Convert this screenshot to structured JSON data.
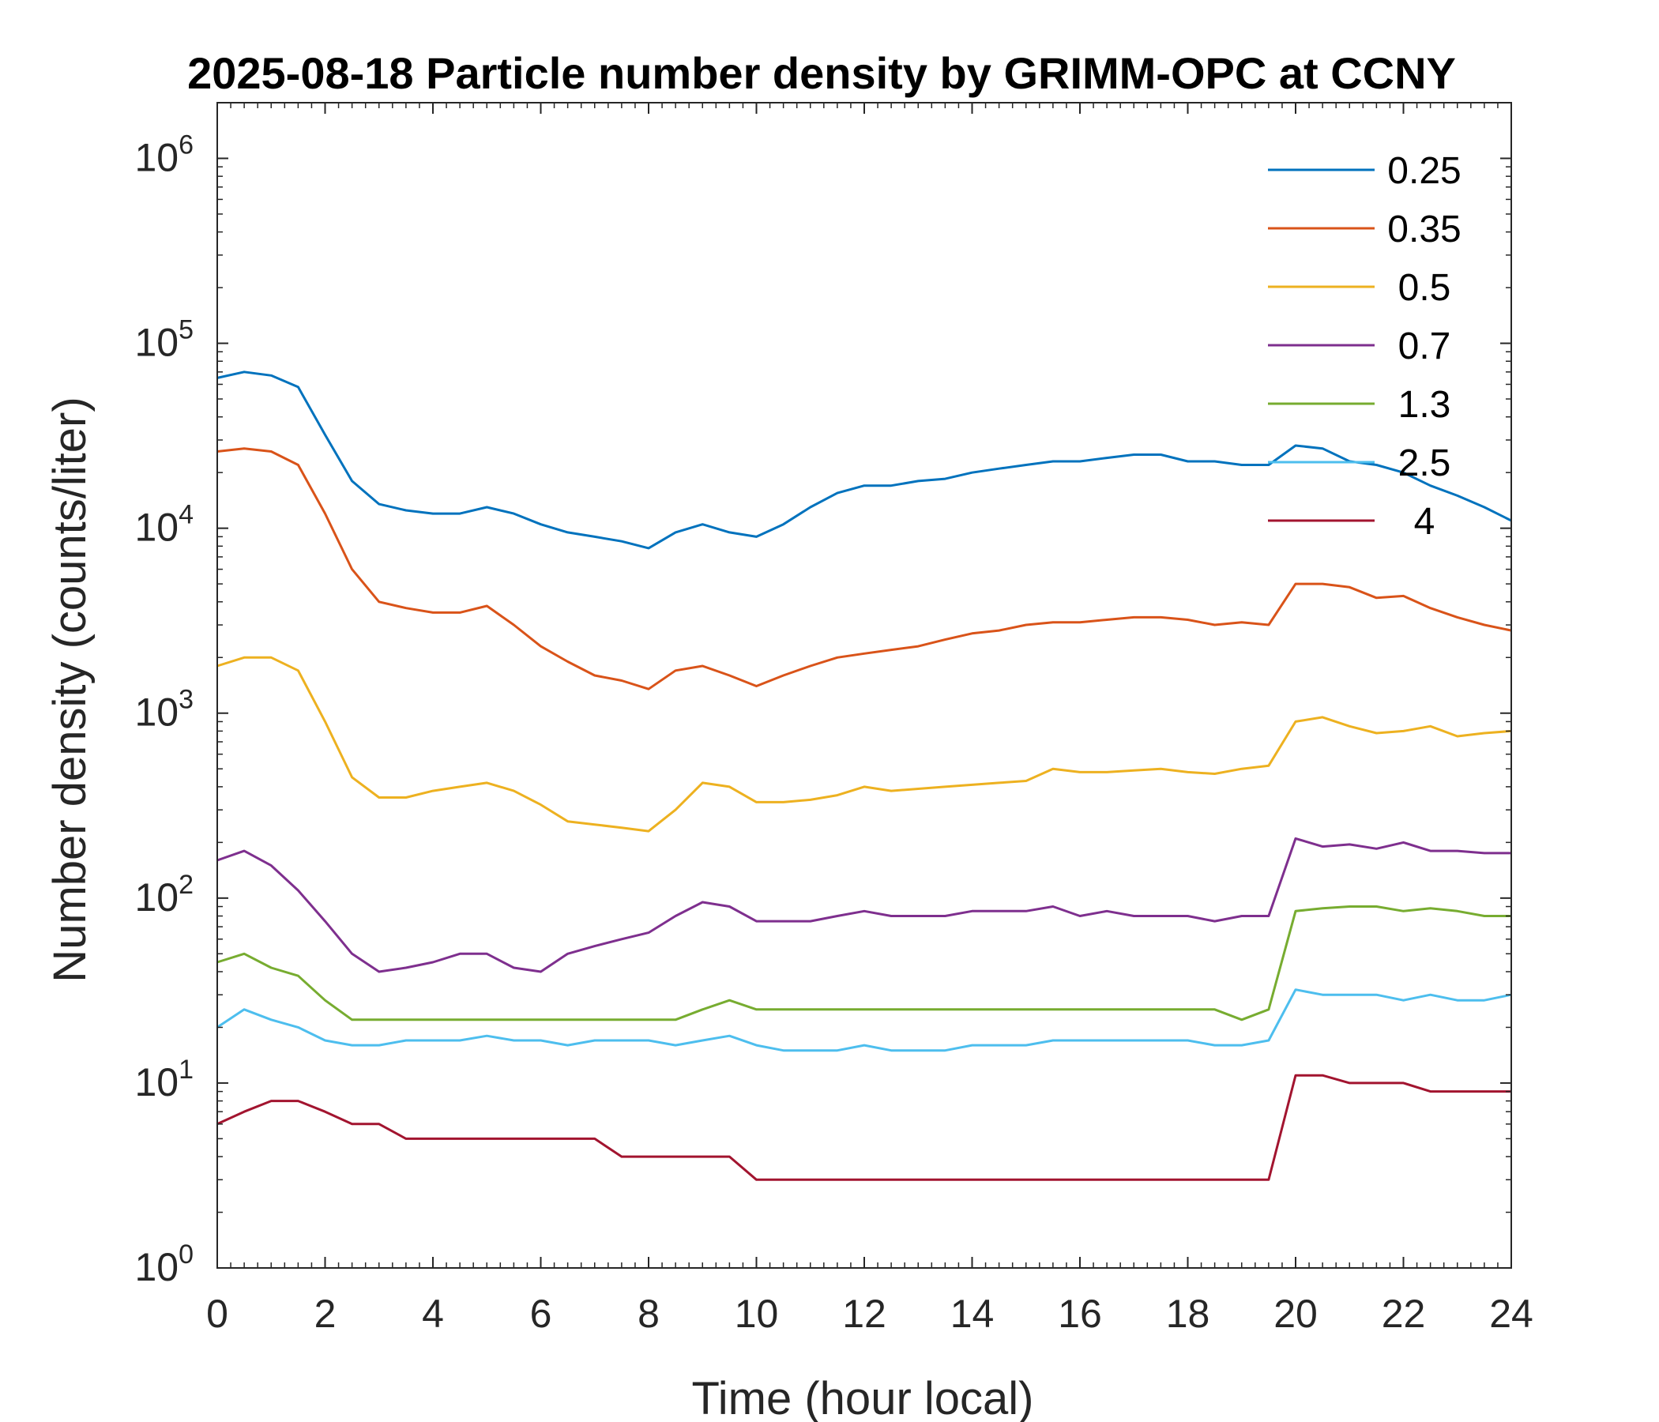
{
  "chart_data": {
    "type": "line",
    "title": "2025-08-18 Particle number density by GRIMM-OPC at CCNY",
    "xlabel": "Time (hour local)",
    "ylabel": "Number density (counts/liter)",
    "xlim": [
      0,
      24
    ],
    "ylim": [
      1,
      2000000
    ],
    "yscale": "log",
    "xticks": [
      0,
      2,
      4,
      6,
      8,
      10,
      12,
      14,
      16,
      18,
      20,
      22,
      24
    ],
    "xtick_labels": [
      "0",
      "2",
      "4",
      "6",
      "8",
      "10",
      "12",
      "14",
      "16",
      "18",
      "20",
      "22",
      "24"
    ],
    "yticks": [
      {
        "base": "10",
        "exp": "0",
        "value": 1
      },
      {
        "base": "10",
        "exp": "1",
        "value": 10
      },
      {
        "base": "10",
        "exp": "2",
        "value": 100
      },
      {
        "base": "10",
        "exp": "3",
        "value": 1000
      },
      {
        "base": "10",
        "exp": "4",
        "value": 10000
      },
      {
        "base": "10",
        "exp": "5",
        "value": 100000
      },
      {
        "base": "10",
        "exp": "6",
        "value": 1000000
      }
    ],
    "grid": false,
    "legend_position": "top-right",
    "x": [
      0,
      0.5,
      1,
      1.5,
      2,
      2.5,
      3,
      3.5,
      4,
      4.5,
      5,
      5.5,
      6,
      6.5,
      7,
      7.5,
      8,
      8.5,
      9,
      9.5,
      10,
      10.5,
      11,
      11.5,
      12,
      12.5,
      13,
      13.5,
      14,
      14.5,
      15,
      15.5,
      16,
      16.5,
      17,
      17.5,
      18,
      18.5,
      19,
      19.5,
      20,
      20.5,
      21,
      21.5,
      22,
      22.5,
      23,
      23.5,
      24
    ],
    "series": [
      {
        "name": "0.25",
        "color": "#0072BD",
        "values": [
          65000,
          70000,
          67000,
          58000,
          32000,
          18000,
          13500,
          12500,
          12000,
          12000,
          13000,
          12000,
          10500,
          9500,
          9000,
          8500,
          7800,
          9500,
          10500,
          9500,
          9000,
          10500,
          13000,
          15500,
          17000,
          17000,
          18000,
          18500,
          20000,
          21000,
          22000,
          23000,
          23000,
          24000,
          25000,
          25000,
          23000,
          23000,
          22000,
          22000,
          28000,
          27000,
          23000,
          22000,
          20000,
          17000,
          15000,
          13000,
          11000
        ]
      },
      {
        "name": "0.35",
        "color": "#D95319",
        "values": [
          26000,
          27000,
          26000,
          22000,
          12000,
          6000,
          4000,
          3700,
          3500,
          3500,
          3800,
          3000,
          2300,
          1900,
          1600,
          1500,
          1350,
          1700,
          1800,
          1600,
          1400,
          1600,
          1800,
          2000,
          2100,
          2200,
          2300,
          2500,
          2700,
          2800,
          3000,
          3100,
          3100,
          3200,
          3300,
          3300,
          3200,
          3000,
          3100,
          3000,
          5000,
          5000,
          4800,
          4200,
          4300,
          3700,
          3300,
          3000,
          2800
        ]
      },
      {
        "name": "0.5",
        "color": "#EDB120",
        "values": [
          1800,
          2000,
          2000,
          1700,
          900,
          450,
          350,
          350,
          380,
          400,
          420,
          380,
          320,
          260,
          250,
          240,
          230,
          300,
          420,
          400,
          330,
          330,
          340,
          360,
          400,
          380,
          390,
          400,
          410,
          420,
          430,
          500,
          480,
          480,
          490,
          500,
          480,
          470,
          500,
          520,
          900,
          950,
          850,
          780,
          800,
          850,
          750,
          780,
          800
        ]
      },
      {
        "name": "0.7",
        "color": "#7E2F8E",
        "values": [
          160,
          180,
          150,
          110,
          75,
          50,
          40,
          42,
          45,
          50,
          50,
          42,
          40,
          50,
          55,
          60,
          65,
          80,
          95,
          90,
          75,
          75,
          75,
          80,
          85,
          80,
          80,
          80,
          85,
          85,
          85,
          90,
          80,
          85,
          80,
          80,
          80,
          75,
          80,
          80,
          210,
          190,
          195,
          185,
          200,
          180,
          180,
          175,
          175
        ]
      },
      {
        "name": "1.3",
        "color": "#77AC30",
        "values": [
          45,
          50,
          42,
          38,
          28,
          22,
          22,
          22,
          22,
          22,
          22,
          22,
          22,
          22,
          22,
          22,
          22,
          22,
          25,
          28,
          25,
          25,
          25,
          25,
          25,
          25,
          25,
          25,
          25,
          25,
          25,
          25,
          25,
          25,
          25,
          25,
          25,
          25,
          22,
          25,
          85,
          88,
          90,
          90,
          85,
          88,
          85,
          80,
          80
        ]
      },
      {
        "name": "2.5",
        "color": "#4DBEEE",
        "values": [
          20,
          25,
          22,
          20,
          17,
          16,
          16,
          17,
          17,
          17,
          18,
          17,
          17,
          16,
          17,
          17,
          17,
          16,
          17,
          18,
          16,
          15,
          15,
          15,
          16,
          15,
          15,
          15,
          16,
          16,
          16,
          17,
          17,
          17,
          17,
          17,
          17,
          16,
          16,
          17,
          32,
          30,
          30,
          30,
          28,
          30,
          28,
          28,
          30
        ]
      },
      {
        "name": "4",
        "color": "#A2142F",
        "values": [
          6,
          7,
          8,
          8,
          7,
          6,
          6,
          5,
          5,
          5,
          5,
          5,
          5,
          5,
          5,
          4,
          4,
          4,
          4,
          4,
          3,
          3,
          3,
          3,
          3,
          3,
          3,
          3,
          3,
          3,
          3,
          3,
          3,
          3,
          3,
          3,
          3,
          3,
          3,
          3,
          11,
          11,
          10,
          10,
          10,
          9,
          9,
          9,
          9
        ]
      }
    ]
  }
}
